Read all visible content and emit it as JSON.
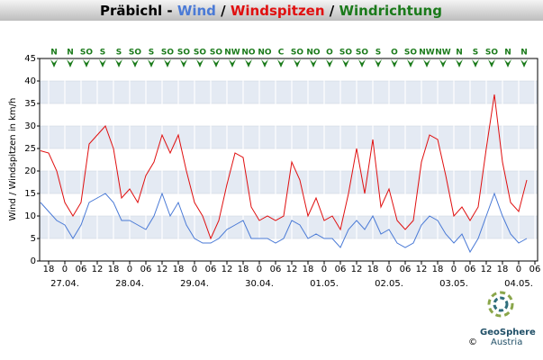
{
  "chart_data": {
    "type": "line",
    "title_prefix": "Präbichl - ",
    "title_separator": " / ",
    "y_label": "Wind / Windspitzen in km/h",
    "x": [
      -9,
      -6,
      -3,
      0,
      3,
      6,
      9,
      12,
      15,
      18,
      21,
      24,
      27,
      30,
      33,
      36,
      39,
      42,
      45,
      48,
      51,
      54,
      57,
      60,
      63,
      66,
      69,
      72,
      75,
      78,
      81,
      84,
      87,
      90,
      93,
      96,
      99,
      102,
      105,
      108,
      111,
      114,
      117,
      120,
      123,
      126,
      129,
      132,
      135,
      138,
      141,
      144,
      147,
      150,
      153,
      156,
      159,
      162,
      165,
      168,
      171
    ],
    "series": [
      {
        "name": "Wind",
        "color": "#4a7ad6",
        "values": [
          13,
          11,
          9,
          8,
          5,
          8,
          13,
          14,
          15,
          13,
          9,
          9,
          8,
          7,
          10,
          15,
          10,
          13,
          8,
          5,
          4,
          4,
          5,
          7,
          8,
          9,
          5,
          5,
          5,
          4,
          5,
          9,
          8,
          5,
          6,
          5,
          5,
          3,
          7,
          9,
          7,
          10,
          6,
          7,
          4,
          3,
          4,
          8,
          10,
          9,
          6,
          4,
          6,
          2,
          5,
          10,
          15,
          10,
          6,
          4,
          5
        ]
      },
      {
        "name": "Windspitzen",
        "color": "#e01010",
        "values": [
          24.5,
          24,
          20,
          13,
          10,
          13,
          26,
          28,
          30,
          25,
          14,
          16,
          13,
          19,
          22,
          28,
          24,
          28,
          20,
          13,
          10,
          5,
          9,
          17,
          24,
          23,
          12,
          9,
          10,
          9,
          10,
          22,
          18,
          10,
          14,
          9,
          10,
          7,
          15,
          25,
          15,
          27,
          12,
          16,
          9,
          7,
          9,
          22,
          28,
          27,
          19,
          10,
          12,
          9,
          12,
          25,
          37,
          22,
          13,
          11,
          18
        ]
      }
    ],
    "direction": {
      "name": "Windrichtung",
      "color": "#1a7a1a",
      "x": [
        -4,
        2,
        8,
        14,
        20,
        26,
        32,
        38,
        44,
        50,
        56,
        62,
        68,
        74,
        80,
        86,
        92,
        98,
        104,
        110,
        116,
        122,
        128,
        134,
        140,
        146,
        152,
        158,
        164,
        170
      ],
      "labels": [
        "N",
        "N",
        "SO",
        "S",
        "S",
        "SO",
        "S",
        "SO",
        "SO",
        "SO",
        "SO",
        "NW",
        "NO",
        "NO",
        "C",
        "SO",
        "NO",
        "O",
        "SO",
        "SO",
        "S",
        "O",
        "SO",
        "NW",
        "NW",
        "N",
        "S",
        "SO",
        "N",
        "N"
      ]
    },
    "xlim": [
      -9.33,
      175
    ],
    "xticks": [
      {
        "value": -6,
        "label": "18"
      },
      {
        "value": 0,
        "label": "0"
      },
      {
        "value": 6,
        "label": "06"
      },
      {
        "value": 12,
        "label": "12"
      },
      {
        "value": 18,
        "label": "18"
      },
      {
        "value": 24,
        "label": "0"
      },
      {
        "value": 30,
        "label": "06"
      },
      {
        "value": 36,
        "label": "12"
      },
      {
        "value": 42,
        "label": "18"
      },
      {
        "value": 48,
        "label": "0"
      },
      {
        "value": 54,
        "label": "06"
      },
      {
        "value": 60,
        "label": "12"
      },
      {
        "value": 66,
        "label": "18"
      },
      {
        "value": 72,
        "label": "0"
      },
      {
        "value": 78,
        "label": "06"
      },
      {
        "value": 84,
        "label": "12"
      },
      {
        "value": 90,
        "label": "18"
      },
      {
        "value": 96,
        "label": "0"
      },
      {
        "value": 102,
        "label": "06"
      },
      {
        "value": 108,
        "label": "12"
      },
      {
        "value": 114,
        "label": "18"
      },
      {
        "value": 120,
        "label": "0"
      },
      {
        "value": 126,
        "label": "06"
      },
      {
        "value": 132,
        "label": "12"
      },
      {
        "value": 138,
        "label": "18"
      },
      {
        "value": 144,
        "label": "0"
      },
      {
        "value": 150,
        "label": "06"
      },
      {
        "value": 156,
        "label": "12"
      },
      {
        "value": 162,
        "label": "18"
      },
      {
        "value": 168,
        "label": "0"
      },
      {
        "value": 174,
        "label": "06"
      }
    ],
    "date_labels": [
      {
        "value": 0,
        "label": "27.04."
      },
      {
        "value": 24,
        "label": "28.04."
      },
      {
        "value": 48,
        "label": "29.04."
      },
      {
        "value": 72,
        "label": "30.04."
      },
      {
        "value": 96,
        "label": "01.05."
      },
      {
        "value": 120,
        "label": "02.05."
      },
      {
        "value": 144,
        "label": "03.05."
      },
      {
        "value": 168,
        "label": "04.05."
      }
    ],
    "ylim": [
      0,
      45
    ],
    "yticks": [
      0,
      5,
      10,
      15,
      20,
      25,
      30,
      35,
      40,
      45
    ],
    "grid": true,
    "band_color": "#e4eaf3",
    "logo": {
      "name": "GeoSphere",
      "sub": "Austria",
      "copyright": "©"
    }
  }
}
